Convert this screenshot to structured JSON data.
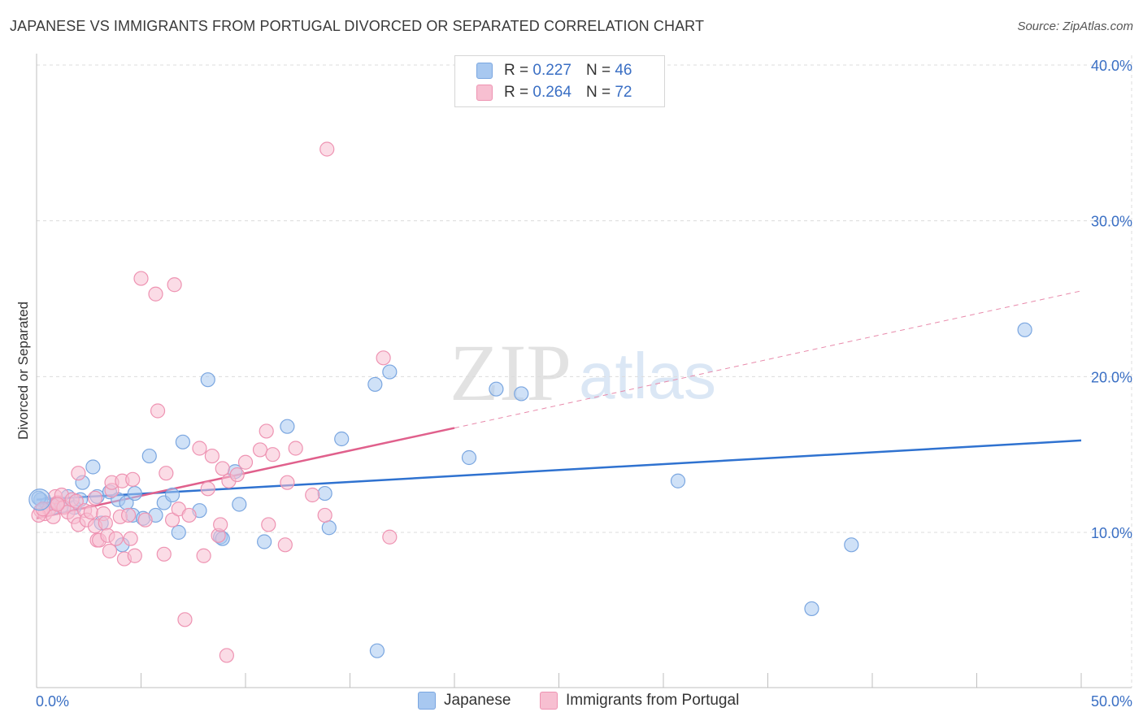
{
  "title": "JAPANESE VS IMMIGRANTS FROM PORTUGAL DIVORCED OR SEPARATED CORRELATION CHART",
  "source": "Source: ZipAtlas.com",
  "watermark": {
    "zip": "ZIP",
    "atlas": "atlas"
  },
  "legend": {
    "r_label": "R =",
    "n_label": "N =",
    "rows": [
      {
        "r": "0.227",
        "n": "46",
        "color": "#a8c8f0",
        "border": "#7aa6e0"
      },
      {
        "r": "0.264",
        "n": "72",
        "color": "#f7bfd1",
        "border": "#ee93b2"
      }
    ]
  },
  "bottom_legend": [
    {
      "label": "Japanese",
      "color": "#a8c8f0",
      "border": "#7aa6e0"
    },
    {
      "label": "Immigrants from Portugal",
      "color": "#f7bfd1",
      "border": "#ee93b2"
    }
  ],
  "chart_data": {
    "type": "scatter",
    "title": "JAPANESE VS IMMIGRANTS FROM PORTUGAL DIVORCED OR SEPARATED CORRELATION CHART",
    "xlabel": "",
    "ylabel": "Divorced or Separated",
    "xlim": [
      0,
      50
    ],
    "ylim": [
      0,
      42
    ],
    "x_tick_labels": [
      "0.0%",
      "50.0%"
    ],
    "y_ticks": [
      10,
      20,
      30,
      40
    ],
    "y_tick_labels": [
      "10.0%",
      "20.0%",
      "30.0%",
      "40.0%"
    ],
    "grid": "horizontal dashed",
    "legend_position": "top-center",
    "series": [
      {
        "name": "Japanese",
        "color": "#7aa6e0",
        "fill": "#a8c8f0",
        "trend": {
          "x0": 0,
          "y0": 12.1,
          "x1": 50,
          "y1": 15.9,
          "dashed_after": null
        },
        "points": [
          [
            0.2,
            12.1
          ],
          [
            0.5,
            11.8
          ],
          [
            0.8,
            11.6
          ],
          [
            1.2,
            11.7
          ],
          [
            1.5,
            12.3
          ],
          [
            1.8,
            11.6
          ],
          [
            2.1,
            12.1
          ],
          [
            2.2,
            13.2
          ],
          [
            2.7,
            14.2
          ],
          [
            2.9,
            12.3
          ],
          [
            3.1,
            10.6
          ],
          [
            3.5,
            12.6
          ],
          [
            3.9,
            12.1
          ],
          [
            4.1,
            9.2
          ],
          [
            4.3,
            11.9
          ],
          [
            4.6,
            11.1
          ],
          [
            4.7,
            12.5
          ],
          [
            5.1,
            10.9
          ],
          [
            5.4,
            14.9
          ],
          [
            5.7,
            11.1
          ],
          [
            6.1,
            11.9
          ],
          [
            6.5,
            12.4
          ],
          [
            6.8,
            10.0
          ],
          [
            7.0,
            15.8
          ],
          [
            7.8,
            11.4
          ],
          [
            8.2,
            19.8
          ],
          [
            8.8,
            9.7
          ],
          [
            8.9,
            9.6
          ],
          [
            9.5,
            13.9
          ],
          [
            9.7,
            11.8
          ],
          [
            10.9,
            9.4
          ],
          [
            12.0,
            16.8
          ],
          [
            13.8,
            12.5
          ],
          [
            14.0,
            10.3
          ],
          [
            14.6,
            16.0
          ],
          [
            16.2,
            19.5
          ],
          [
            16.3,
            2.4
          ],
          [
            16.9,
            20.3
          ],
          [
            20.7,
            14.8
          ],
          [
            22.0,
            19.2
          ],
          [
            23.2,
            18.9
          ],
          [
            30.7,
            13.3
          ],
          [
            37.1,
            5.1
          ],
          [
            39.0,
            9.2
          ],
          [
            47.3,
            23.0
          ],
          [
            0.1,
            12.2
          ]
        ]
      },
      {
        "name": "Immigrants from Portugal",
        "color": "#ee93b2",
        "fill": "#f7bfd1",
        "trend": {
          "x0": 0,
          "y0": 10.9,
          "x1": 20,
          "y1": 16.7,
          "dashed_x1": 50,
          "dashed_y1": 25.5
        },
        "points": [
          [
            0.2,
            11.4
          ],
          [
            0.4,
            11.2
          ],
          [
            0.6,
            11.5
          ],
          [
            0.8,
            11.0
          ],
          [
            0.9,
            12.3
          ],
          [
            1.0,
            11.9
          ],
          [
            1.2,
            12.4
          ],
          [
            1.3,
            11.6
          ],
          [
            1.5,
            11.3
          ],
          [
            1.7,
            12.1
          ],
          [
            1.8,
            11.0
          ],
          [
            1.9,
            12.0
          ],
          [
            2.0,
            10.5
          ],
          [
            2.0,
            13.8
          ],
          [
            2.3,
            11.4
          ],
          [
            2.4,
            10.8
          ],
          [
            2.6,
            11.3
          ],
          [
            2.8,
            12.2
          ],
          [
            2.8,
            10.4
          ],
          [
            2.9,
            9.5
          ],
          [
            3.0,
            9.5
          ],
          [
            3.2,
            11.2
          ],
          [
            3.3,
            10.6
          ],
          [
            3.4,
            9.8
          ],
          [
            3.5,
            8.8
          ],
          [
            3.6,
            12.7
          ],
          [
            3.6,
            13.2
          ],
          [
            3.8,
            9.6
          ],
          [
            4.0,
            11.0
          ],
          [
            4.1,
            13.3
          ],
          [
            4.2,
            8.3
          ],
          [
            4.4,
            11.1
          ],
          [
            4.5,
            9.6
          ],
          [
            4.6,
            13.4
          ],
          [
            4.7,
            8.5
          ],
          [
            5.0,
            26.3
          ],
          [
            5.2,
            10.8
          ],
          [
            5.7,
            25.3
          ],
          [
            5.8,
            17.8
          ],
          [
            6.1,
            8.6
          ],
          [
            6.2,
            13.8
          ],
          [
            6.5,
            10.8
          ],
          [
            6.6,
            25.9
          ],
          [
            6.8,
            11.5
          ],
          [
            7.1,
            4.4
          ],
          [
            7.3,
            11.1
          ],
          [
            7.8,
            15.4
          ],
          [
            8.0,
            8.5
          ],
          [
            8.2,
            12.8
          ],
          [
            8.4,
            14.9
          ],
          [
            8.7,
            9.8
          ],
          [
            8.8,
            10.5
          ],
          [
            8.9,
            14.1
          ],
          [
            9.1,
            2.1
          ],
          [
            9.2,
            13.3
          ],
          [
            9.6,
            13.7
          ],
          [
            10.0,
            14.5
          ],
          [
            10.7,
            15.3
          ],
          [
            11.0,
            16.5
          ],
          [
            11.1,
            10.5
          ],
          [
            11.3,
            15.0
          ],
          [
            11.9,
            9.2
          ],
          [
            12.0,
            13.2
          ],
          [
            12.4,
            15.4
          ],
          [
            13.2,
            12.4
          ],
          [
            13.8,
            11.1
          ],
          [
            13.9,
            34.6
          ],
          [
            16.6,
            21.2
          ],
          [
            16.9,
            9.7
          ],
          [
            0.1,
            11.1
          ],
          [
            0.3,
            11.5
          ],
          [
            1.0,
            11.8
          ]
        ]
      }
    ]
  }
}
